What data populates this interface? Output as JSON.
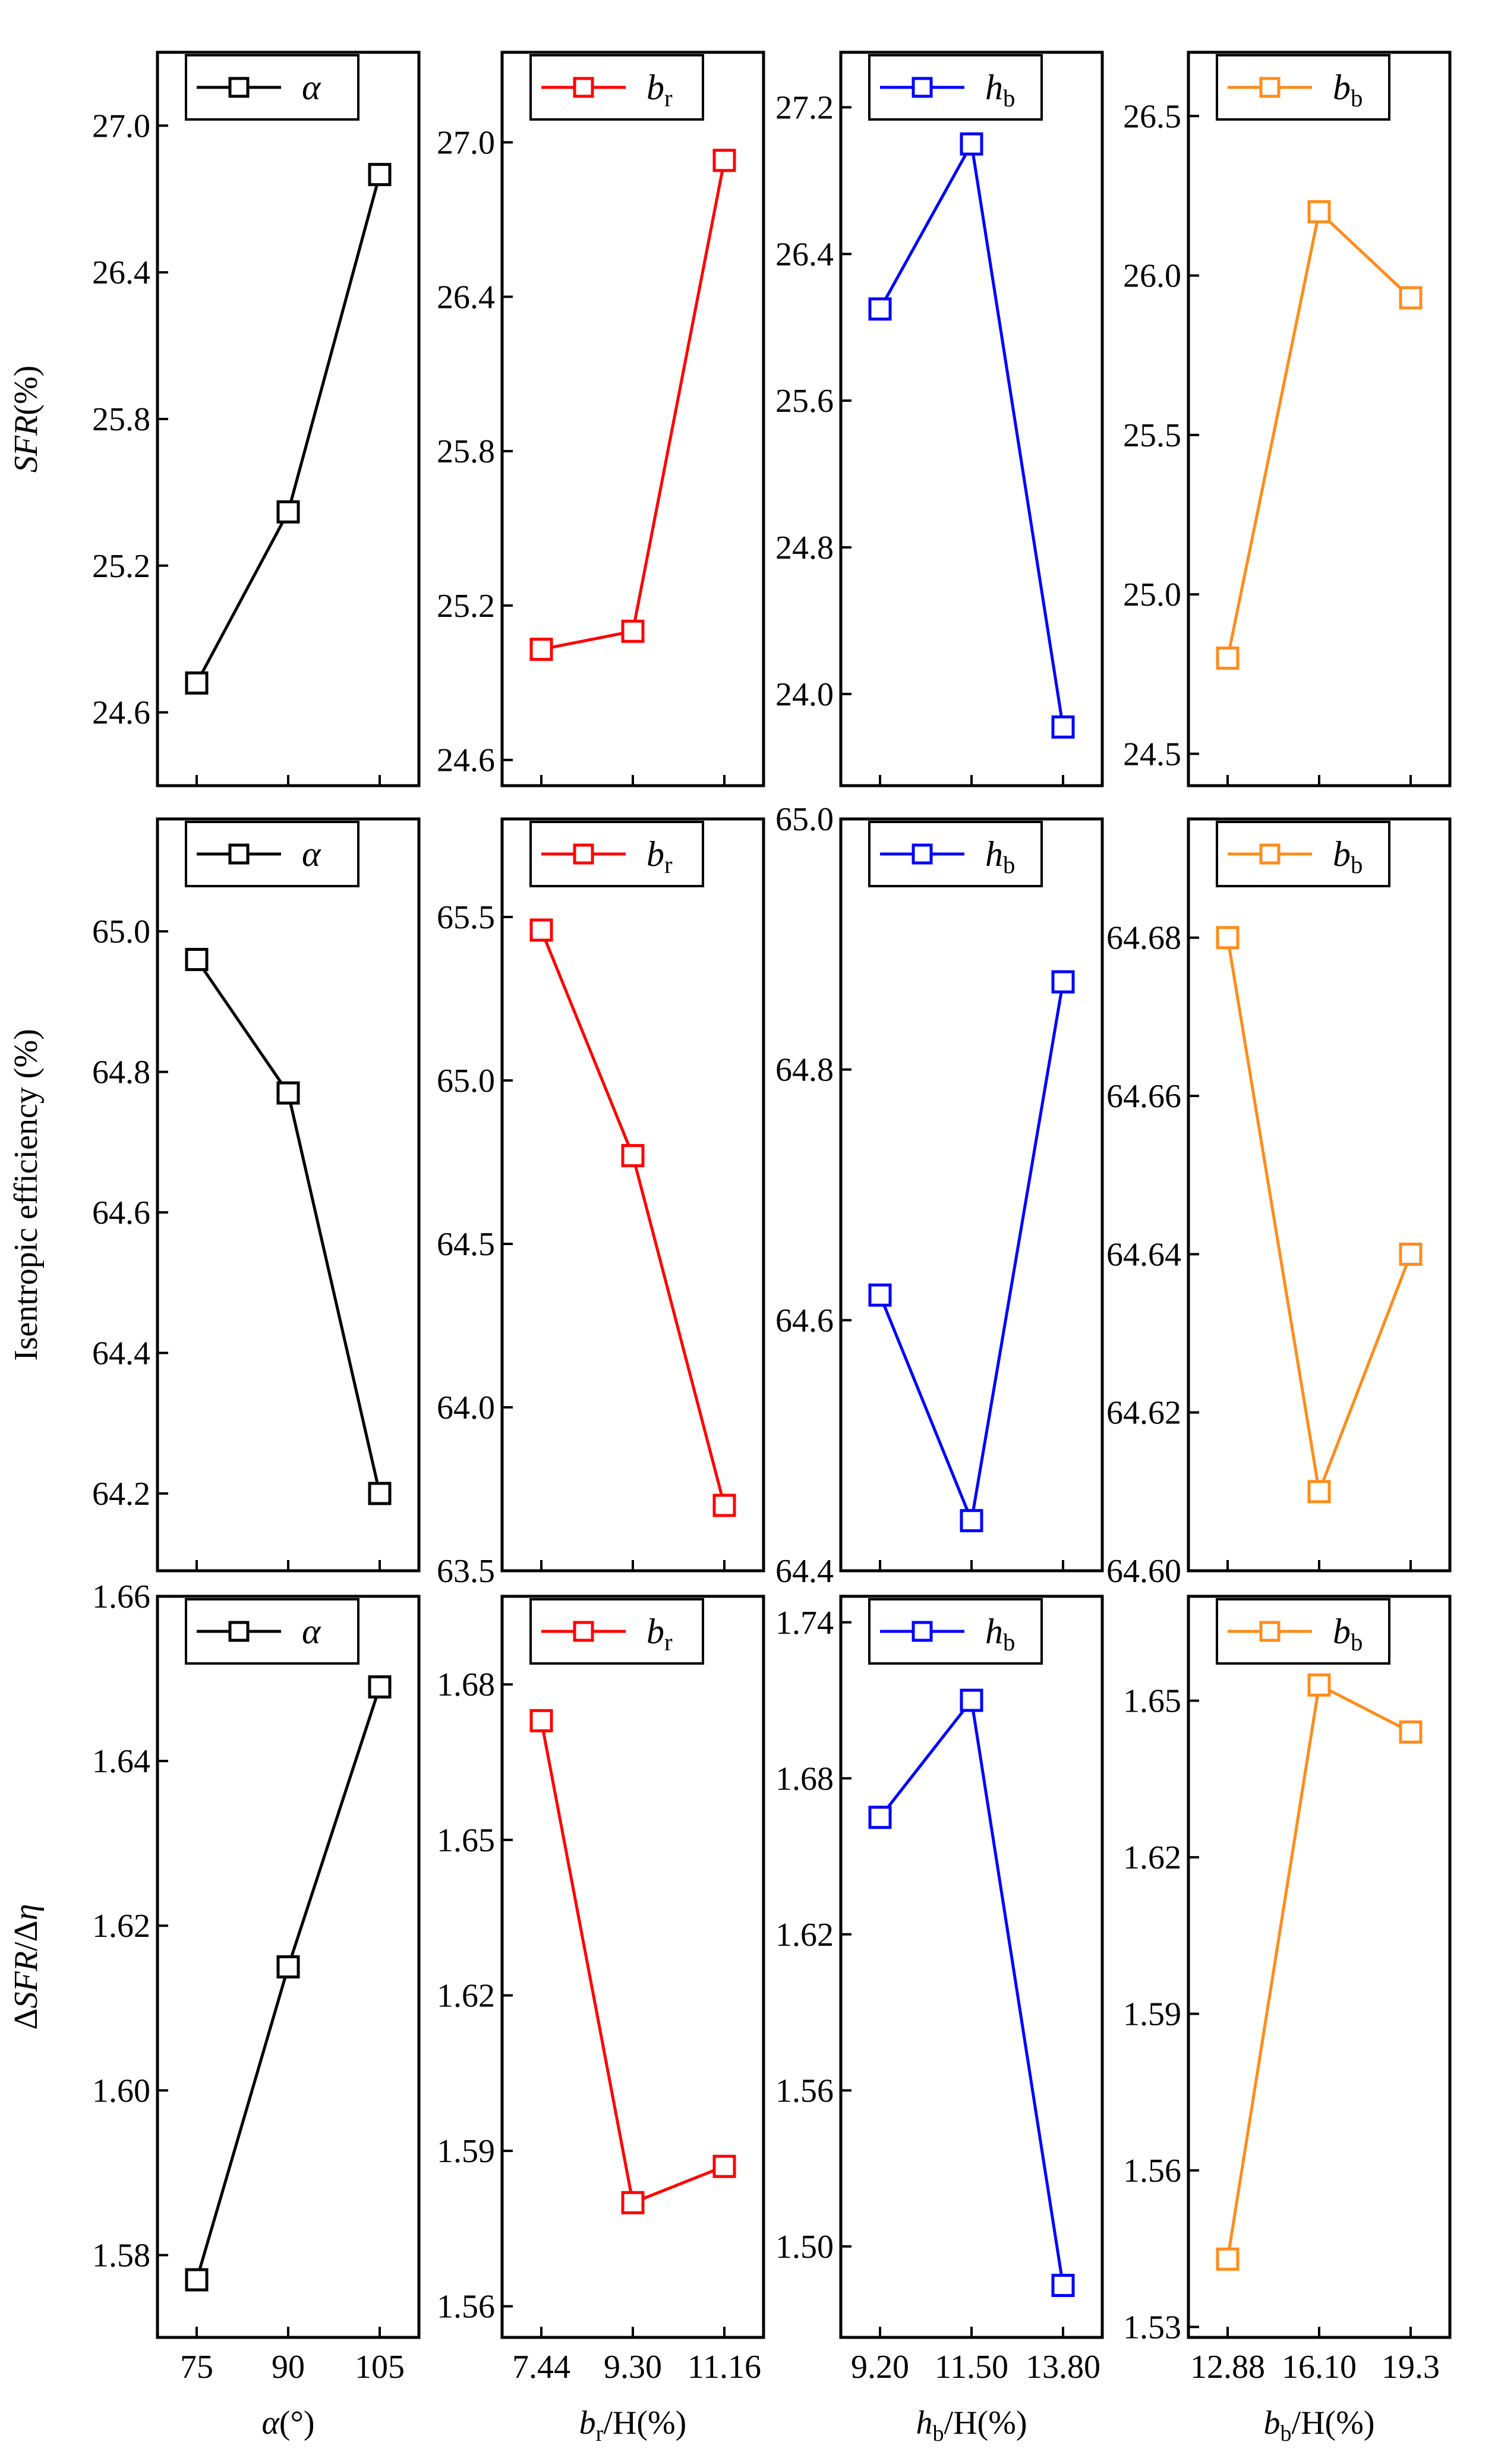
{
  "row_labels": [
    [
      {
        "text": "SFR",
        "italic": true
      },
      {
        "text": "(%)"
      }
    ],
    [
      {
        "text": "Isentropic efficiency (%)"
      }
    ],
    [
      {
        "text": "Δ"
      },
      {
        "text": "SFR",
        "italic": true
      },
      {
        "text": "/Δ"
      },
      {
        "text": "η",
        "italic": true
      }
    ]
  ],
  "col_labels": [
    [
      {
        "text": "α",
        "italic": true
      },
      {
        "text": "(°)"
      }
    ],
    [
      {
        "text": "b",
        "italic": true
      },
      {
        "text": "r",
        "sub": true
      },
      {
        "text": "/H(%)"
      }
    ],
    [
      {
        "text": "h",
        "italic": true
      },
      {
        "text": "b",
        "sub": true
      },
      {
        "text": "/H(%)"
      }
    ],
    [
      {
        "text": "b",
        "italic": true
      },
      {
        "text": "b",
        "sub": true
      },
      {
        "text": "/H(%)"
      }
    ]
  ],
  "columns": [
    {
      "legend": {
        "main": "α",
        "sub": ""
      },
      "color": "#000000",
      "xticks": [
        "75",
        "90",
        "105"
      ]
    },
    {
      "legend": {
        "main": "b",
        "sub": "r"
      },
      "color": "#ff0000",
      "xticks": [
        "7.44",
        "9.30",
        "11.16"
      ]
    },
    {
      "legend": {
        "main": "h",
        "sub": "b"
      },
      "color": "#0000ff",
      "xticks": [
        "9.20",
        "11.50",
        "13.80"
      ]
    },
    {
      "legend": {
        "main": "b",
        "sub": "b"
      },
      "color": "#ff8c1a",
      "xticks": [
        "12.88",
        "16.10",
        "19.3"
      ]
    }
  ],
  "chart_data": [
    {
      "type": "line",
      "row": 0,
      "col": 0,
      "x": [
        "75",
        "90",
        "105"
      ],
      "values": [
        24.72,
        25.42,
        26.8
      ],
      "ylim": [
        24.3,
        27.3
      ],
      "yticks": [
        24.6,
        25.2,
        25.8,
        26.4,
        27.0
      ],
      "ytick_labels": [
        "24.6",
        "25.2",
        "25.8",
        "26.4",
        "27.0"
      ],
      "show_x_ticks": false
    },
    {
      "type": "line",
      "row": 0,
      "col": 1,
      "x": [
        "7.44",
        "9.30",
        "11.16"
      ],
      "values": [
        25.03,
        25.1,
        26.93
      ],
      "ylim": [
        24.5,
        27.35
      ],
      "yticks": [
        24.6,
        25.2,
        25.8,
        26.4,
        27.0
      ],
      "ytick_labels": [
        "24.6",
        "25.2",
        "25.8",
        "26.4",
        "27.0"
      ],
      "show_x_ticks": false
    },
    {
      "type": "line",
      "row": 0,
      "col": 2,
      "x": [
        "9.20",
        "11.50",
        "13.80"
      ],
      "values": [
        26.1,
        27.0,
        23.82
      ],
      "ylim": [
        23.5,
        27.5
      ],
      "yticks": [
        24.0,
        24.8,
        25.6,
        26.4,
        27.2
      ],
      "ytick_labels": [
        "24.0",
        "24.8",
        "25.6",
        "26.4",
        "27.2"
      ],
      "show_x_ticks": false
    },
    {
      "type": "line",
      "row": 0,
      "col": 3,
      "x": [
        "12.88",
        "16.10",
        "19.3"
      ],
      "values": [
        24.8,
        26.2,
        25.93
      ],
      "ylim": [
        24.4,
        26.7
      ],
      "yticks": [
        24.5,
        25.0,
        25.5,
        26.0,
        26.5
      ],
      "ytick_labels": [
        "24.5",
        "25.0",
        "25.5",
        "26.0",
        "26.5"
      ],
      "show_x_ticks": false
    },
    {
      "type": "line",
      "row": 1,
      "col": 0,
      "x": [
        "75",
        "90",
        "105"
      ],
      "values": [
        64.96,
        64.77,
        64.2
      ],
      "ylim": [
        64.09,
        65.16
      ],
      "yticks": [
        64.2,
        64.4,
        64.6,
        64.8,
        65.0
      ],
      "ytick_labels": [
        "64.2",
        "64.4",
        "64.6",
        "64.8",
        "65.0"
      ],
      "show_x_ticks": false
    },
    {
      "type": "line",
      "row": 1,
      "col": 1,
      "x": [
        "7.44",
        "9.30",
        "11.16"
      ],
      "values": [
        65.46,
        64.77,
        63.7
      ],
      "ylim": [
        63.5,
        65.8
      ],
      "yticks": [
        63.5,
        64.0,
        64.5,
        65.0,
        65.5
      ],
      "ytick_labels": [
        "63.5",
        "64.0",
        "64.5",
        "65.0",
        "65.5"
      ],
      "show_x_ticks": false
    },
    {
      "type": "line",
      "row": 1,
      "col": 2,
      "x": [
        "9.20",
        "11.50",
        "13.80"
      ],
      "values": [
        64.62,
        64.44,
        64.87
      ],
      "ylim": [
        64.4,
        65.0
      ],
      "yticks": [
        64.4,
        64.6,
        64.8,
        65.0
      ],
      "ytick_labels": [
        "64.4",
        "64.6",
        "64.8",
        "65.0"
      ],
      "show_x_ticks": false
    },
    {
      "type": "line",
      "row": 1,
      "col": 3,
      "x": [
        "12.88",
        "16.10",
        "19.3"
      ],
      "values": [
        64.68,
        64.61,
        64.64
      ],
      "ylim": [
        64.6,
        64.695
      ],
      "yticks": [
        64.6,
        64.62,
        64.64,
        64.66,
        64.68
      ],
      "ytick_labels": [
        "64.60",
        "64.62",
        "64.64",
        "64.66",
        "64.68"
      ],
      "show_x_ticks": false
    },
    {
      "type": "line",
      "row": 2,
      "col": 0,
      "x": [
        "75",
        "90",
        "105"
      ],
      "values": [
        1.577,
        1.615,
        1.649
      ],
      "ylim": [
        1.57,
        1.66
      ],
      "yticks": [
        1.58,
        1.6,
        1.62,
        1.64,
        1.66
      ],
      "ytick_labels": [
        "1.58",
        "1.60",
        "1.62",
        "1.64",
        "1.66"
      ],
      "show_x_ticks": true
    },
    {
      "type": "line",
      "row": 2,
      "col": 1,
      "x": [
        "7.44",
        "9.30",
        "11.16"
      ],
      "values": [
        1.673,
        1.58,
        1.587
      ],
      "ylim": [
        1.554,
        1.697
      ],
      "yticks": [
        1.56,
        1.59,
        1.62,
        1.65,
        1.68
      ],
      "ytick_labels": [
        "1.56",
        "1.59",
        "1.62",
        "1.65",
        "1.68"
      ],
      "show_x_ticks": true
    },
    {
      "type": "line",
      "row": 2,
      "col": 2,
      "x": [
        "9.20",
        "11.50",
        "13.80"
      ],
      "values": [
        1.665,
        1.71,
        1.485
      ],
      "ylim": [
        1.465,
        1.75
      ],
      "yticks": [
        1.5,
        1.56,
        1.62,
        1.68,
        1.74
      ],
      "ytick_labels": [
        "1.50",
        "1.56",
        "1.62",
        "1.68",
        "1.74"
      ],
      "show_x_ticks": true
    },
    {
      "type": "line",
      "row": 2,
      "col": 3,
      "x": [
        "12.88",
        "16.10",
        "19.3"
      ],
      "values": [
        1.543,
        1.653,
        1.644
      ],
      "ylim": [
        1.528,
        1.67
      ],
      "yticks": [
        1.53,
        1.56,
        1.59,
        1.62,
        1.65
      ],
      "ytick_labels": [
        "1.53",
        "1.56",
        "1.59",
        "1.62",
        "1.65"
      ],
      "show_x_ticks": true
    }
  ]
}
